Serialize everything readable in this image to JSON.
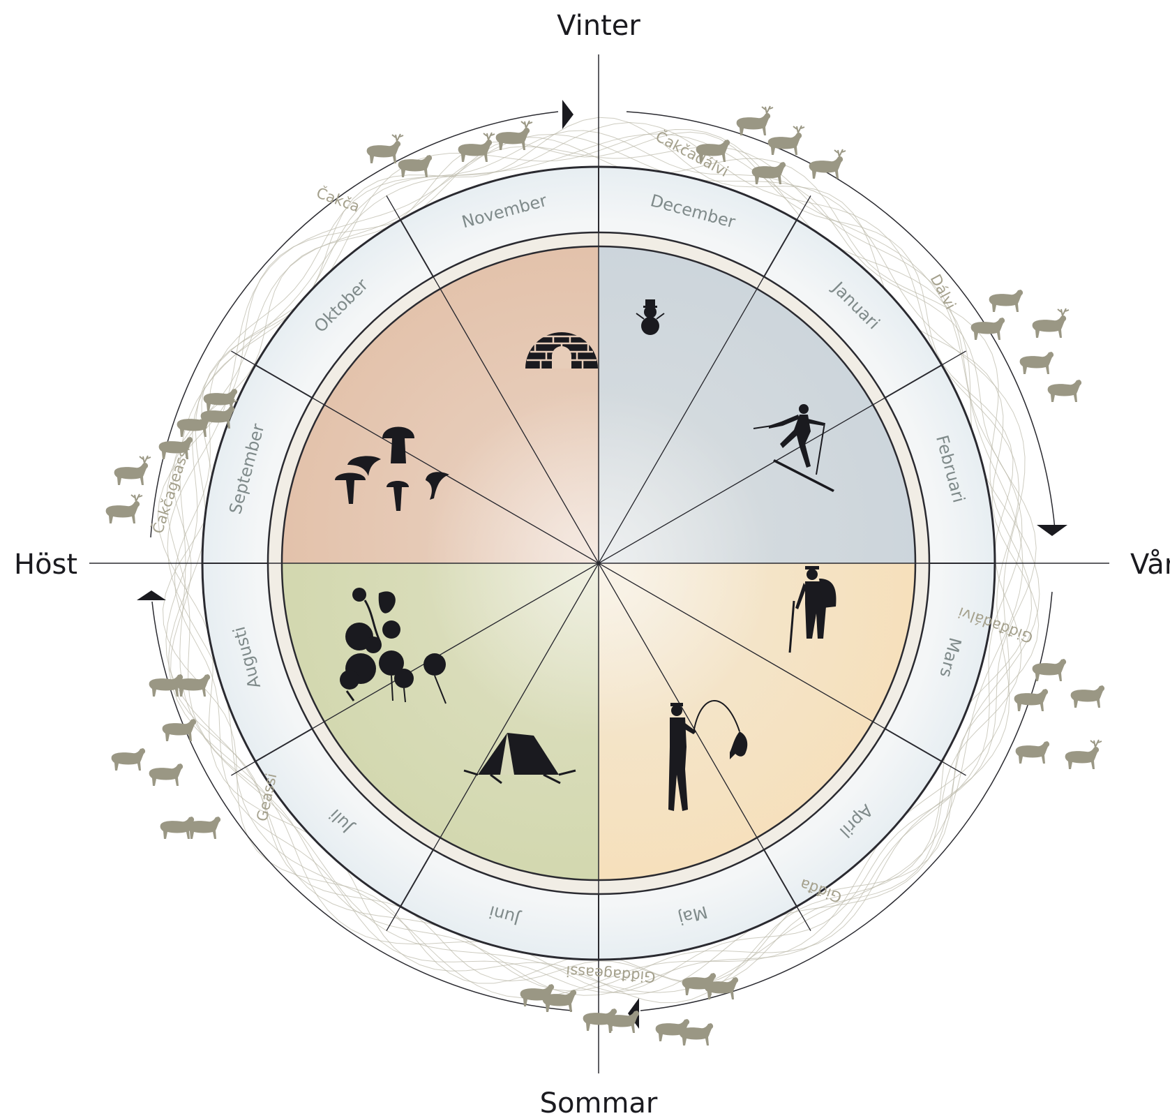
{
  "seasons": {
    "top": "Vinter",
    "right": "Vår",
    "bottom": "Sommar",
    "left": "Höst"
  },
  "months": [
    "December",
    "Januari",
    "Februari",
    "Mars",
    "April",
    "Maj",
    "Juni",
    "Juli",
    "Augusti",
    "September",
    "Oktober",
    "November"
  ],
  "sami_seasons": [
    "Čakčadálvi",
    "Dálvi",
    "Giđđadálvi",
    "Giđđa",
    "Giđđageassi",
    "Geassi",
    "Čakčageassi",
    "Čakča"
  ],
  "activities": [
    {
      "name": "igloo-icon",
      "month": "November"
    },
    {
      "name": "snowman-icon",
      "month": "December"
    },
    {
      "name": "skier-icon",
      "month": "Januari"
    },
    {
      "name": "hiker-icon",
      "month": "Mars"
    },
    {
      "name": "fisherman-icon",
      "month": "April"
    },
    {
      "name": "tent-icon",
      "month": "Juni"
    },
    {
      "name": "berries-icon",
      "month": "Augusti"
    },
    {
      "name": "mushrooms-icon",
      "month": "September"
    }
  ],
  "colors": {
    "winter_fill": "#d3d9de",
    "autumn_fill": "#e6c6b1",
    "summer_fill": "#d6d9b1",
    "spring_fill": "#f5e3c4",
    "month_ring": "#edf2f5",
    "reindeer": "#9a9784",
    "icons": "#1a1a1f"
  }
}
